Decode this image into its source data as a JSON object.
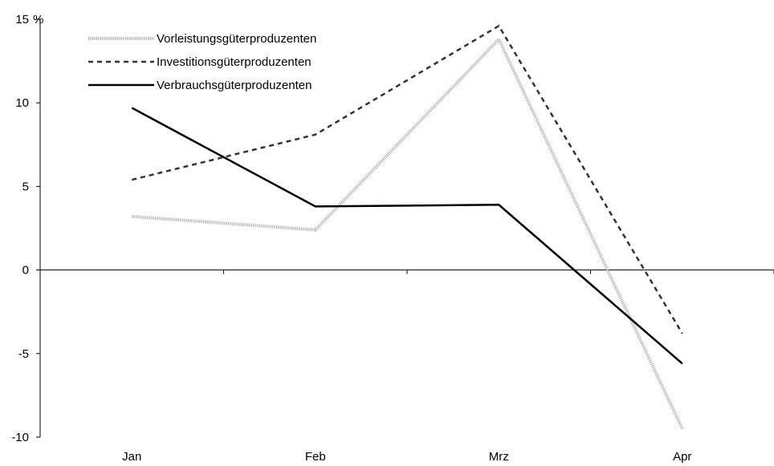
{
  "chart_data": {
    "type": "line",
    "categories": [
      "Jan",
      "Feb",
      "Mrz",
      "Apr"
    ],
    "ylim": [
      -10,
      15
    ],
    "yticks": [
      -10,
      -5,
      0,
      5,
      10,
      15
    ],
    "y_unit": "%",
    "grid": false,
    "legend_position": "top-left",
    "series": [
      {
        "name": "Vorleistungsgüterproduzenten",
        "values": [
          3.2,
          2.4,
          13.8,
          -9.5
        ],
        "color": "#b0b0b0",
        "style": "dotted-thick"
      },
      {
        "name": "Investitionsgüterproduzenten",
        "values": [
          5.4,
          8.1,
          14.6,
          -3.8
        ],
        "color": "#333333",
        "style": "dashed"
      },
      {
        "name": "Verbrauchsgüterproduzenten",
        "values": [
          9.7,
          3.8,
          3.9,
          -5.6
        ],
        "color": "#000000",
        "style": "solid"
      }
    ]
  }
}
